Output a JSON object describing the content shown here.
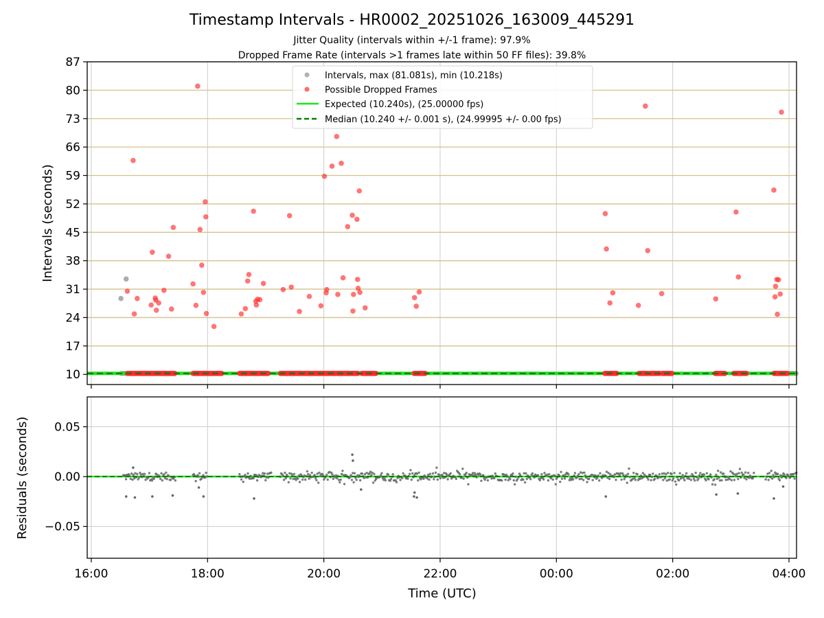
{
  "title": "Timestamp Intervals - HR0002_20251026_163009_445291",
  "subtitle_1": "Jitter Quality (intervals within +/-1 frame): 97.9%",
  "subtitle_2": "Dropped Frame Rate (intervals >1 frames late within 50 FF files): 39.8%",
  "colors": {
    "normal": "#9e9e9e",
    "dropped": "#ff2b2b",
    "expected": "#19e619",
    "median": "#008000",
    "hline": "#d4c08a",
    "grid": "#cccccc",
    "residual": "#666666"
  },
  "chart_data": [
    {
      "type": "scatter",
      "name": "intervals",
      "xlabel": "Time (UTC)",
      "ylabel": "Intervals (seconds)",
      "xlim": [
        15.93,
        28.13
      ],
      "ylim": [
        7.5,
        87
      ],
      "xticks": [
        16,
        18,
        20,
        22,
        24,
        26,
        28
      ],
      "xticklabels": [
        "16:00",
        "18:00",
        "20:00",
        "22:00",
        "00:00",
        "02:00",
        "04:00"
      ],
      "yticks": [
        10,
        17,
        24,
        31,
        38,
        45,
        52,
        59,
        66,
        73,
        80,
        87
      ],
      "yticklabels": [
        "10",
        "17",
        "24",
        "31",
        "38",
        "45",
        "52",
        "59",
        "66",
        "73",
        "80",
        "87"
      ],
      "grid": true,
      "legend": {
        "placement": "upper-center",
        "entries": [
          "Intervals, max (81.081s), min (10.218s)",
          "Possible Dropped Frames",
          "Expected (10.240s), (25.00000 fps)",
          "Median (10.240 +/- 0.001 s), (24.99995 +/- 0.00 fps)"
        ]
      },
      "expected_line": 10.24,
      "median_line": 10.24,
      "normal_points": [
        [
          16.51,
          28.7
        ],
        [
          16.6,
          33.5
        ]
      ],
      "normal_baseline_ranges": [
        [
          16.51,
          16.62
        ],
        [
          27.98,
          28.13
        ]
      ],
      "dropped_points": [
        [
          16.62,
          30.5
        ],
        [
          16.72,
          62.7
        ],
        [
          16.74,
          24.9
        ],
        [
          16.79,
          28.7
        ],
        [
          17.03,
          27.1
        ],
        [
          17.05,
          40.1
        ],
        [
          17.1,
          28.8
        ],
        [
          17.12,
          25.8
        ],
        [
          17.11,
          28.3
        ],
        [
          17.16,
          27.6
        ],
        [
          17.25,
          30.7
        ],
        [
          17.33,
          39.1
        ],
        [
          17.38,
          26.1
        ],
        [
          17.41,
          46.2
        ],
        [
          17.75,
          32.3
        ],
        [
          17.8,
          27.0
        ],
        [
          17.83,
          81.0
        ],
        [
          17.87,
          45.7
        ],
        [
          17.9,
          36.9
        ],
        [
          17.93,
          30.2
        ],
        [
          17.96,
          52.5
        ],
        [
          17.97,
          48.8
        ],
        [
          17.98,
          25.0
        ],
        [
          18.11,
          21.8
        ],
        [
          18.58,
          24.9
        ],
        [
          18.65,
          26.2
        ],
        [
          18.69,
          33.0
        ],
        [
          18.71,
          34.6
        ],
        [
          18.79,
          50.2
        ],
        [
          18.84,
          27.1
        ],
        [
          18.83,
          28.0
        ],
        [
          18.86,
          28.5
        ],
        [
          18.9,
          28.4
        ],
        [
          18.96,
          32.4
        ],
        [
          19.3,
          30.9
        ],
        [
          19.41,
          49.1
        ],
        [
          19.44,
          31.5
        ],
        [
          19.58,
          25.5
        ],
        [
          19.75,
          29.2
        ],
        [
          19.95,
          26.9
        ],
        [
          20.01,
          58.8
        ],
        [
          20.04,
          30.1
        ],
        [
          20.05,
          30.9
        ],
        [
          20.14,
          61.3
        ],
        [
          20.22,
          68.6
        ],
        [
          20.24,
          29.7
        ],
        [
          20.3,
          62.0
        ],
        [
          20.33,
          33.8
        ],
        [
          20.41,
          46.4
        ],
        [
          20.49,
          49.2
        ],
        [
          20.5,
          25.6
        ],
        [
          20.51,
          29.7
        ],
        [
          20.58,
          33.4
        ],
        [
          20.57,
          48.2
        ],
        [
          20.59,
          31.2
        ],
        [
          20.61,
          55.2
        ],
        [
          20.62,
          30.2
        ],
        [
          20.71,
          26.4
        ],
        [
          21.56,
          28.9
        ],
        [
          21.59,
          26.8
        ],
        [
          21.64,
          30.3
        ],
        [
          24.84,
          49.6
        ],
        [
          24.86,
          40.9
        ],
        [
          24.92,
          27.6
        ],
        [
          24.97,
          30.1
        ],
        [
          25.41,
          27.0
        ],
        [
          25.53,
          76.1
        ],
        [
          25.57,
          40.5
        ],
        [
          25.81,
          29.9
        ],
        [
          26.74,
          28.6
        ],
        [
          27.09,
          50.0
        ],
        [
          27.13,
          34.0
        ],
        [
          27.74,
          55.4
        ],
        [
          27.76,
          29.1
        ],
        [
          27.77,
          31.7
        ],
        [
          27.79,
          33.4
        ],
        [
          27.82,
          33.3
        ],
        [
          27.8,
          24.8
        ],
        [
          27.85,
          29.8
        ],
        [
          27.87,
          74.6
        ]
      ],
      "dropped_baseline_ranges": [
        [
          16.62,
          17.45
        ],
        [
          17.75,
          18.25
        ],
        [
          18.55,
          19.05
        ],
        [
          19.25,
          20.25
        ],
        [
          20.25,
          20.6
        ],
        [
          20.65,
          20.9
        ],
        [
          21.55,
          21.75
        ],
        [
          24.83,
          25.05
        ],
        [
          25.42,
          25.6
        ],
        [
          25.62,
          25.78
        ],
        [
          25.82,
          25.99
        ],
        [
          26.73,
          26.9
        ],
        [
          27.05,
          27.28
        ],
        [
          27.74,
          27.98
        ]
      ]
    },
    {
      "type": "scatter",
      "name": "residuals",
      "xlabel": "Time (UTC)",
      "ylabel": "Residuals (seconds)",
      "xlim": [
        15.93,
        28.13
      ],
      "ylim": [
        -0.082,
        0.08
      ],
      "yticks": [
        0.05,
        0.0,
        -0.05
      ],
      "yticklabels": [
        "0.05",
        "0.00",
        "−0.05"
      ],
      "zero_line": 0,
      "outliers": [
        [
          16.6,
          -0.02
        ],
        [
          16.75,
          -0.021
        ],
        [
          16.72,
          0.009
        ],
        [
          17.05,
          -0.02
        ],
        [
          17.4,
          -0.019
        ],
        [
          17.93,
          -0.02
        ],
        [
          17.85,
          -0.011
        ],
        [
          18.8,
          -0.022
        ],
        [
          20.49,
          0.022
        ],
        [
          20.5,
          0.016
        ],
        [
          20.64,
          -0.013
        ],
        [
          21.55,
          -0.02
        ],
        [
          21.6,
          -0.021
        ],
        [
          21.56,
          -0.016
        ],
        [
          24.85,
          -0.02
        ],
        [
          26.75,
          -0.018
        ],
        [
          27.12,
          -0.017
        ],
        [
          27.74,
          -0.022
        ],
        [
          27.9,
          -0.01
        ]
      ],
      "residual_clusters": [
        [
          16.55,
          17.45
        ],
        [
          17.75,
          18.0
        ],
        [
          18.55,
          19.1
        ],
        [
          19.25,
          20.9
        ],
        [
          20.9,
          24.0
        ],
        [
          24.0,
          25.5
        ],
        [
          25.5,
          26.9
        ],
        [
          26.9,
          27.4
        ],
        [
          27.6,
          28.13
        ]
      ],
      "residual_spread": 0.004
    }
  ]
}
